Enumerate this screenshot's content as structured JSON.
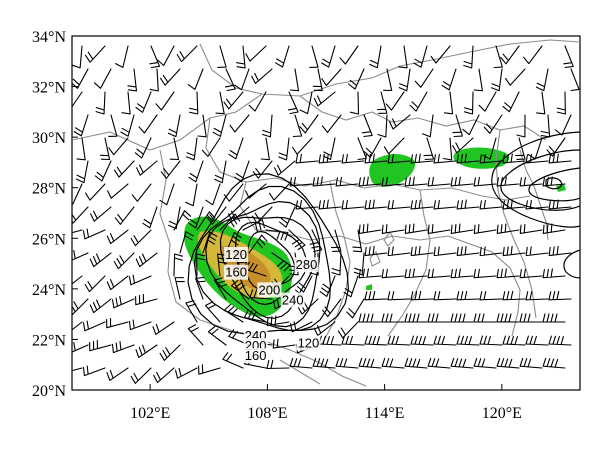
{
  "map": {
    "y_axis": {
      "unit": "N",
      "ticks": [
        {
          "value": 34,
          "label": "34°N"
        },
        {
          "value": 32,
          "label": "32°N"
        },
        {
          "value": 30,
          "label": "30°N"
        },
        {
          "value": 28,
          "label": "28°N"
        },
        {
          "value": 26,
          "label": "26°N"
        },
        {
          "value": 24,
          "label": "24°N"
        },
        {
          "value": 22,
          "label": "22°N"
        },
        {
          "value": 20,
          "label": "20°N"
        }
      ]
    },
    "x_axis": {
      "unit": "E",
      "ticks": [
        {
          "value": 102,
          "label": "102°E"
        },
        {
          "value": 108,
          "label": "108°E"
        },
        {
          "value": 114,
          "label": "114°E"
        },
        {
          "value": 120,
          "label": "120°E"
        }
      ]
    },
    "extent": {
      "lon_min": 98,
      "lon_max": 124,
      "lat_min": 20,
      "lat_max": 34
    },
    "contour_labels": [
      {
        "text": "120",
        "lon": 106.4,
        "lat": 25.3
      },
      {
        "text": "160",
        "lon": 106.4,
        "lat": 24.6
      },
      {
        "text": "200",
        "lon": 108.1,
        "lat": 23.9
      },
      {
        "text": "240",
        "lon": 109.3,
        "lat": 23.5
      },
      {
        "text": "280",
        "lon": 110.0,
        "lat": 24.9
      },
      {
        "text": "240",
        "lon": 107.4,
        "lat": 22.1
      },
      {
        "text": "200",
        "lon": 107.4,
        "lat": 21.7
      },
      {
        "text": "160",
        "lon": 107.4,
        "lat": 21.3
      },
      {
        "text": "120",
        "lon": 110.1,
        "lat": 21.8
      }
    ],
    "colors": {
      "shading_green": "#21c521",
      "shading_yellow": "#d4b83a",
      "shading_orange": "#c8902a",
      "contour": "#000000",
      "barb": "#000000",
      "border": "#8c8c8c"
    }
  }
}
